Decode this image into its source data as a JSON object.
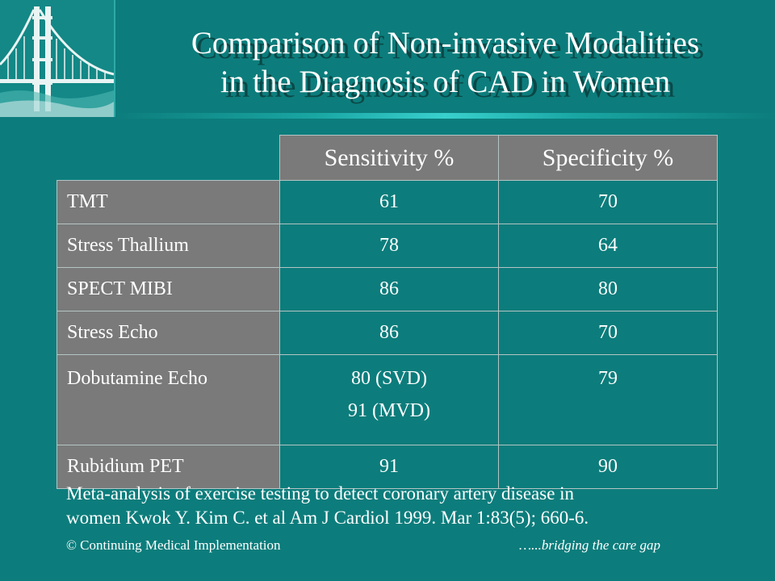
{
  "title": {
    "line1": "Comparison of Non-invasive Modalities",
    "line2": "in the Diagnosis of CAD in Women"
  },
  "logo": {
    "icon": "golden-gate-bridge-icon"
  },
  "table": {
    "headers": [
      "",
      "Sensitivity %",
      "Specificity %"
    ],
    "rows": [
      {
        "label": "TMT",
        "sensitivity": [
          "61"
        ],
        "specificity": "70"
      },
      {
        "label": "Stress Thallium",
        "sensitivity": [
          "78"
        ],
        "specificity": "64"
      },
      {
        "label": "SPECT MIBI",
        "sensitivity": [
          "86"
        ],
        "specificity": "80"
      },
      {
        "label": "Stress Echo",
        "sensitivity": [
          "86"
        ],
        "specificity": "70"
      },
      {
        "label": "Dobutamine Echo",
        "sensitivity": [
          "80 (SVD)",
          "91 (MVD)"
        ],
        "specificity": "79"
      },
      {
        "label": "Rubidium PET",
        "sensitivity": [
          "91"
        ],
        "specificity": "90"
      }
    ]
  },
  "citation": {
    "line1": "Meta-analysis of exercise testing to detect coronary artery disease in",
    "line2": "women Kwok Y. Kim C. et al Am J Cardiol 1999. Mar 1:83(5); 660-6."
  },
  "footer": {
    "left": "© Continuing Medical Implementation",
    "right": "…...bridging the care gap"
  },
  "colors": {
    "background": "#0c7d7c",
    "header_cell": "#7a7a7a",
    "title_shadow": "#0a4847"
  }
}
